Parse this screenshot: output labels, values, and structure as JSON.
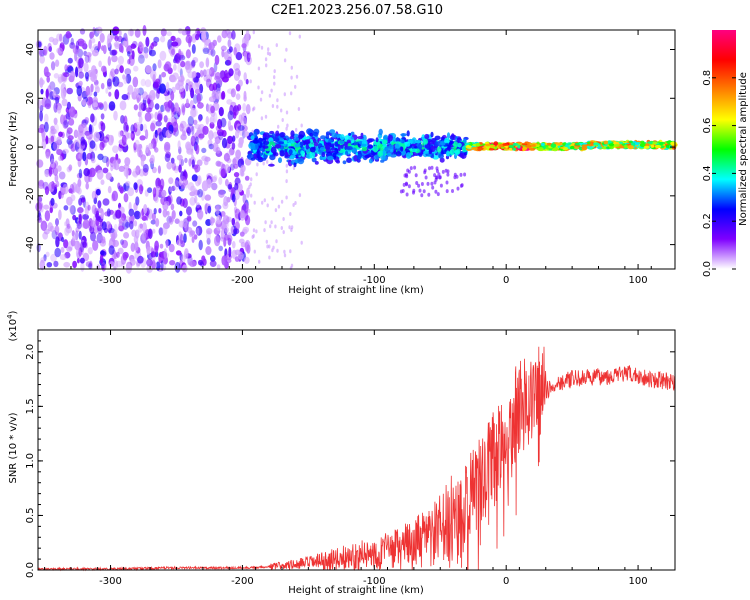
{
  "title": "C2E1.2023.256.07.58.G10",
  "chart_data": [
    {
      "type": "heatmap",
      "xlabel": "Height of straight line (km)",
      "ylabel": "Frequency (Hz)",
      "xlim": [
        -355,
        128
      ],
      "ylim": [
        -50,
        48
      ],
      "x_ticks": [
        "-300",
        "-200",
        "-100",
        "0",
        "100"
      ],
      "x_tick_values": [
        -300,
        -200,
        -100,
        0,
        100
      ],
      "y_ticks": [
        "-40",
        "-20",
        "0",
        "20",
        "40"
      ],
      "y_tick_values": [
        -40,
        -20,
        0,
        20,
        40
      ],
      "colorbar": {
        "label": "Normalized spectral amplitude",
        "range": [
          0,
          1
        ],
        "ticks": [
          "0.0",
          "0.2",
          "0.4",
          "0.6",
          "0.8"
        ],
        "tick_values": [
          0.0,
          0.2,
          0.4,
          0.6,
          0.8
        ],
        "colormap": [
          "#ffffff",
          "#7f00ff",
          "#0000ff",
          "#00ffff",
          "#00ff00",
          "#ffff00",
          "#ff7f00",
          "#ff0000",
          "#ff0080"
        ]
      },
      "regions": [
        {
          "x_range": [
            -355,
            -195
          ],
          "freq_range": [
            -50,
            48
          ],
          "amplitude": "0.05-0.2"
        },
        {
          "x_range": [
            -195,
            -30
          ],
          "freq_range": [
            -12,
            12
          ],
          "amplitude": "0.2-0.5"
        },
        {
          "x_range": [
            -30,
            128
          ],
          "freq_range": [
            -2,
            3
          ],
          "amplitude": "0.4-0.95"
        }
      ]
    },
    {
      "type": "line",
      "xlabel": "Height of straight line (km)",
      "ylabel": "SNR (10 * v/v)",
      "y_multiplier": "(x10",
      "y_multiplier_exp": "4",
      "y_multiplier_close": ")",
      "xlim": [
        -355,
        128
      ],
      "ylim": [
        0,
        2.2
      ],
      "x_ticks": [
        "-300",
        "-200",
        "-100",
        "0",
        "100"
      ],
      "x_tick_values": [
        -300,
        -200,
        -100,
        0,
        100
      ],
      "y_ticks": [
        "0.0",
        "0.5",
        "1.0",
        "1.5",
        "2.0"
      ],
      "y_tick_values": [
        0.0,
        0.5,
        1.0,
        1.5,
        2.0
      ],
      "line_color": "#ee3333",
      "series": [
        {
          "x": [
            -355,
            -300,
            -250,
            -200,
            -180,
            -160,
            -140,
            -120,
            -100,
            -80,
            -60,
            -50,
            -40,
            -30,
            -20,
            -10,
            -5,
            0,
            5,
            10,
            20,
            30,
            40,
            50,
            60,
            70,
            80,
            90,
            100,
            110,
            128
          ],
          "y": [
            0.01,
            0.01,
            0.02,
            0.02,
            0.03,
            0.05,
            0.08,
            0.12,
            0.15,
            0.2,
            0.28,
            0.35,
            0.45,
            0.6,
            0.8,
            1.0,
            1.1,
            1.2,
            1.35,
            1.5,
            1.58,
            1.64,
            1.72,
            1.75,
            1.76,
            1.77,
            1.78,
            1.8,
            1.78,
            1.75,
            1.72
          ]
        }
      ]
    }
  ]
}
